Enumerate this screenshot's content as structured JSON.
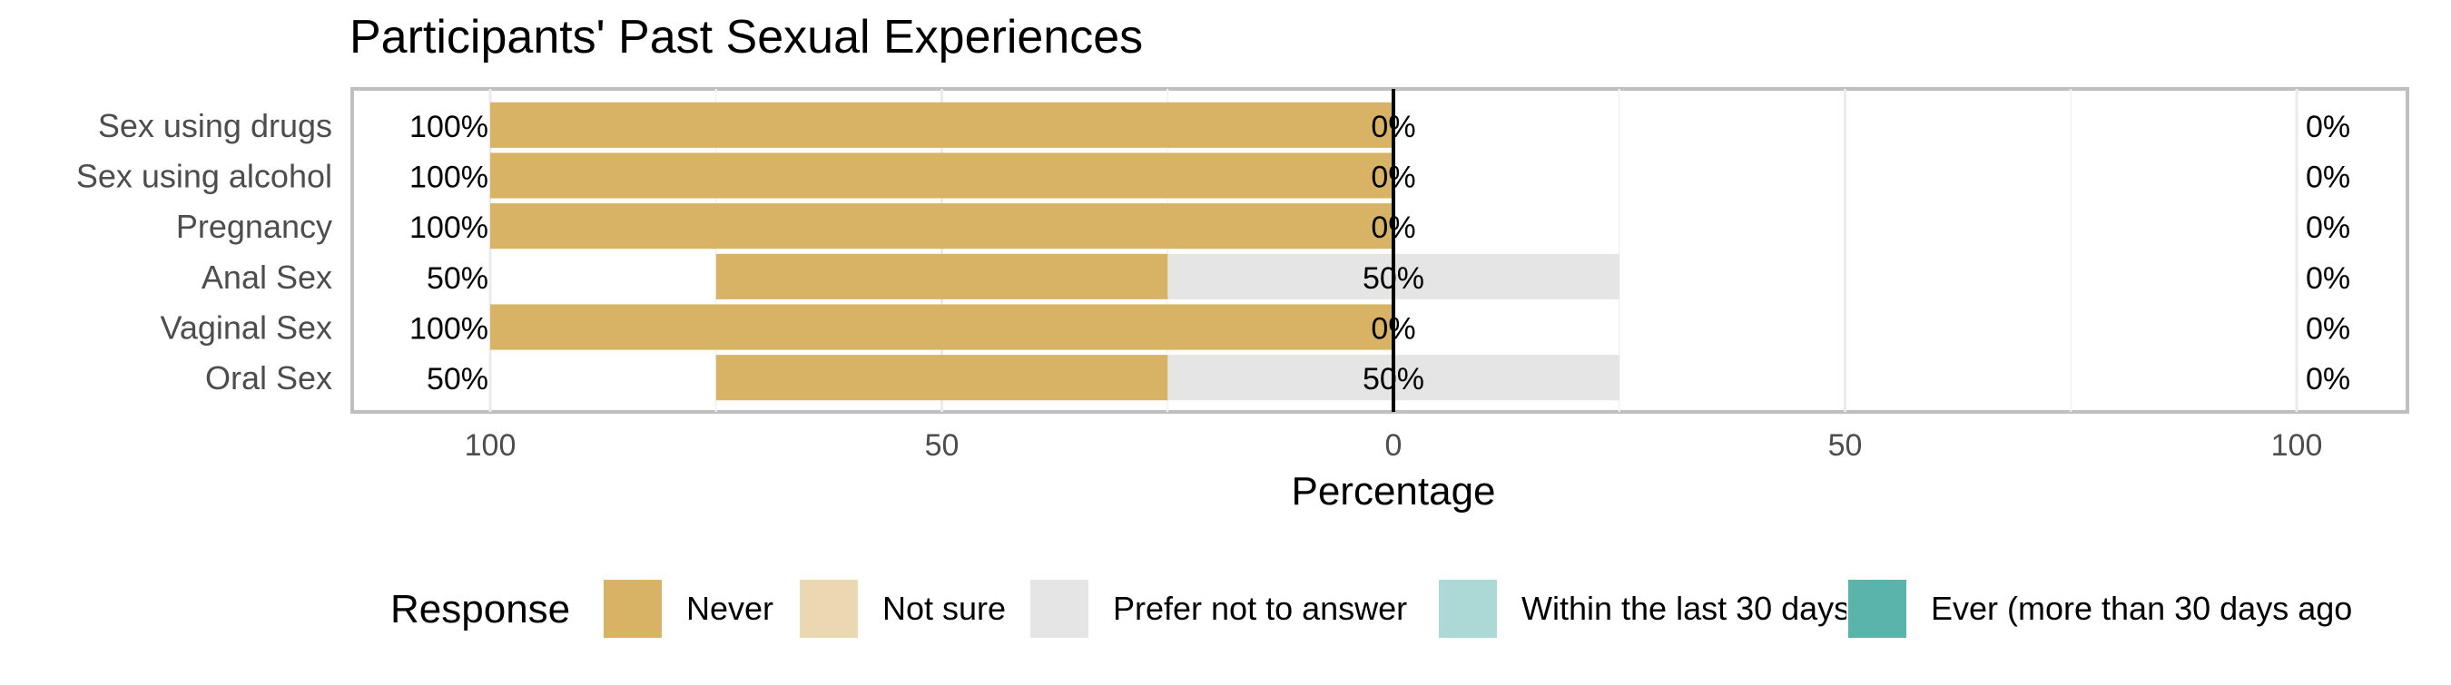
{
  "chart_data": {
    "type": "bar",
    "orientation": "horizontal",
    "stacking": "diverging",
    "title": "Participants' Past Sexual Experiences",
    "xlabel": "Percentage",
    "ylabel": "",
    "xlim": [
      -100,
      100
    ],
    "x_ticks": [
      -100,
      -50,
      0,
      50,
      100
    ],
    "x_tick_labels": [
      "100",
      "50",
      "0",
      "50",
      "100"
    ],
    "grid": true,
    "legend_position": "bottom",
    "legend_title": "Response",
    "categories": [
      "Sex using drugs",
      "Sex using alcohol",
      "Pregnancy",
      "Anal Sex",
      "Vaginal Sex",
      "Oral Sex"
    ],
    "series": [
      {
        "name": "Never",
        "color": "#D8B365",
        "values": [
          100,
          100,
          100,
          50,
          100,
          50
        ]
      },
      {
        "name": "Not sure",
        "color": "#EBD8B2",
        "values": [
          0,
          0,
          0,
          0,
          0,
          0
        ]
      },
      {
        "name": "Prefer not to answer",
        "color": "#E5E5E5",
        "values": [
          0,
          0,
          0,
          50,
          0,
          50
        ]
      },
      {
        "name": "Within the last 30 days",
        "color": "#ACD9D5",
        "values": [
          0,
          0,
          0,
          0,
          0,
          0
        ]
      },
      {
        "name": "Ever (more than 30 days ago",
        "color": "#5AB4AC",
        "values": [
          0,
          0,
          0,
          0,
          0,
          0
        ]
      }
    ],
    "left_labels": [
      "100%",
      "100%",
      "100%",
      "50%",
      "100%",
      "50%"
    ],
    "center_labels": [
      "0%",
      "0%",
      "0%",
      "50%",
      "0%",
      "50%"
    ],
    "right_labels": [
      "0%",
      "0%",
      "0%",
      "0%",
      "0%",
      "0%"
    ]
  }
}
